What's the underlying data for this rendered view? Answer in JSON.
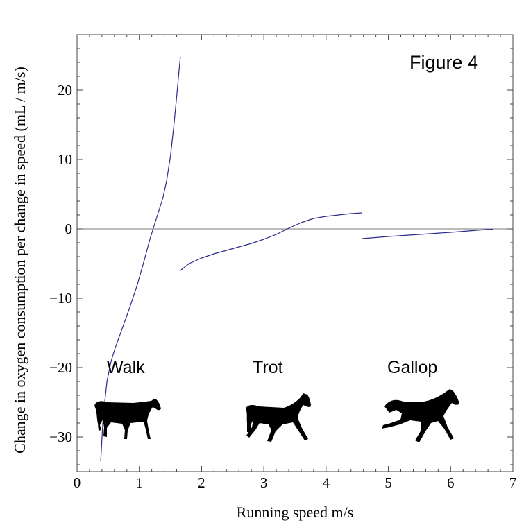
{
  "chart_data": {
    "type": "line",
    "title": "Figure 4",
    "xlabel": "Running speed m/s",
    "ylabel": "Change in oxygen consumption per change in speed (mL / m/s)",
    "xlim": [
      0,
      7
    ],
    "ylim": [
      -35,
      28
    ],
    "x_ticks": [
      0,
      1,
      2,
      3,
      4,
      5,
      6,
      7
    ],
    "y_ticks": [
      -30,
      -20,
      -10,
      0,
      10,
      20
    ],
    "grid": false,
    "legend": "none",
    "zero_line": true,
    "line_color": "#2b2b8c",
    "series": [
      {
        "name": "Walk",
        "x": [
          0.38,
          0.42,
          0.48,
          0.55,
          0.62,
          0.72,
          0.84,
          0.97,
          1.08,
          1.17,
          1.24,
          1.31,
          1.38,
          1.44,
          1.5,
          1.55,
          1.6,
          1.64,
          1.66
        ],
        "y": [
          -33.5,
          -27.0,
          -22.0,
          -19.0,
          -17.0,
          -14.5,
          -11.5,
          -8.0,
          -4.5,
          -1.5,
          0.5,
          2.5,
          4.5,
          7.0,
          10.5,
          14.5,
          19.0,
          23.0,
          24.8
        ]
      },
      {
        "name": "Trot",
        "x": [
          1.66,
          1.8,
          2.0,
          2.2,
          2.4,
          2.6,
          2.8,
          3.0,
          3.2,
          3.4,
          3.6,
          3.8,
          4.0,
          4.2,
          4.4,
          4.57
        ],
        "y": [
          -6.0,
          -5.0,
          -4.2,
          -3.6,
          -3.1,
          -2.6,
          -2.1,
          -1.5,
          -0.8,
          0.1,
          0.9,
          1.5,
          1.8,
          2.0,
          2.2,
          2.3
        ]
      },
      {
        "name": "Gallop",
        "x": [
          4.58,
          5.0,
          5.5,
          6.0,
          6.5,
          6.68
        ],
        "y": [
          -1.4,
          -1.1,
          -0.8,
          -0.5,
          -0.15,
          -0.05
        ]
      }
    ],
    "annotations": [
      "Walk",
      "Trot",
      "Gallop"
    ]
  },
  "icons": {
    "walk": "walking-horse-silhouette",
    "trot": "trotting-horse-silhouette",
    "gallop": "galloping-horse-silhouette"
  }
}
